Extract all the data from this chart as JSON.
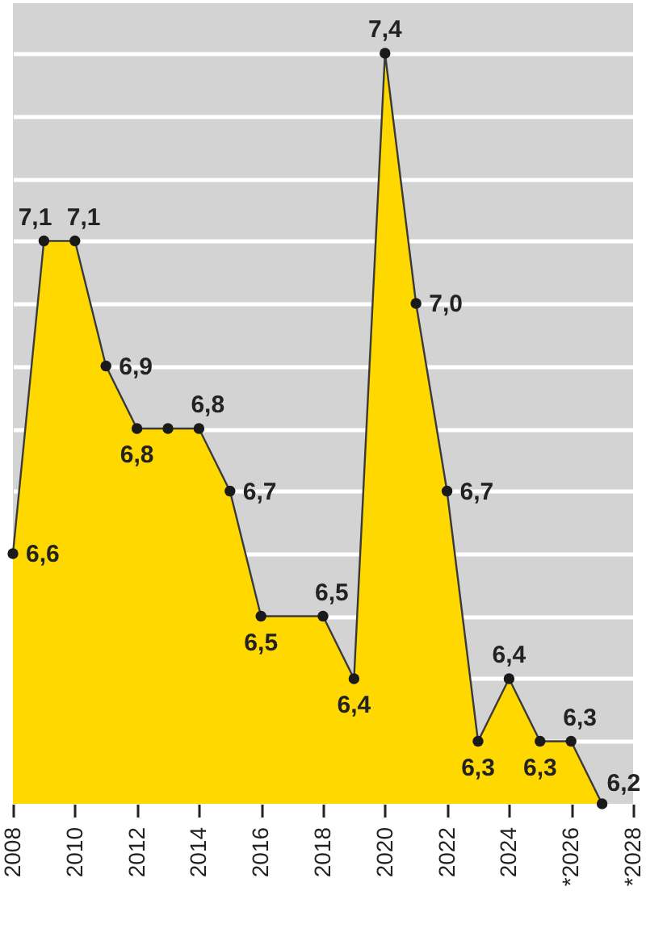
{
  "chart_data": {
    "type": "area",
    "x": [
      2008,
      2009,
      2010,
      2011,
      2012,
      2013,
      2014,
      2015,
      2016,
      2018,
      2019,
      2020,
      2021,
      2022,
      2023,
      2024,
      2025,
      2026,
      2027
    ],
    "series": [
      {
        "color": "#ffd800",
        "values": [
          6.6,
          7.1,
          7.1,
          6.9,
          6.8,
          6.8,
          6.8,
          6.7,
          6.5,
          6.5,
          6.4,
          7.4,
          7.0,
          6.7,
          6.3,
          6.4,
          6.3,
          6.3,
          6.2
        ],
        "value_labels": [
          "6,6",
          "7,1",
          "7,1",
          "6,9",
          "6,8",
          null,
          "6,8",
          "6,7",
          "6,5",
          "6,5",
          "6,4",
          "7,4",
          "7,0",
          "6,7",
          "6,3",
          "6,4",
          "6,3",
          "6,3",
          "6,2"
        ]
      }
    ],
    "xlim": [
      2008,
      2028
    ],
    "xticks": [
      2008,
      2010,
      2012,
      2014,
      2016,
      2018,
      2020,
      2022,
      2024,
      {
        "value": 2026,
        "label": "*2026"
      },
      {
        "value": 2028,
        "label": "*2028"
      }
    ],
    "ylim": [
      6.2,
      7.48
    ],
    "yticks": [
      {
        "value": 6.3,
        "label": null
      },
      {
        "value": 6.4,
        "label": null
      },
      {
        "value": 6.5,
        "label": null
      },
      {
        "value": 6.6,
        "label": null
      },
      {
        "value": 6.7,
        "label": null
      },
      {
        "value": 6.8,
        "label": null
      },
      {
        "value": 6.9,
        "label": null
      },
      {
        "value": 7.0,
        "label": null
      },
      {
        "value": 7.1,
        "label": null
      },
      {
        "value": 7.2,
        "label": null
      },
      {
        "value": 7.3,
        "label": null
      },
      {
        "value": 7.4,
        "label": null
      }
    ],
    "grid": "y",
    "tick_labels": "x",
    "marker": "circle"
  }
}
